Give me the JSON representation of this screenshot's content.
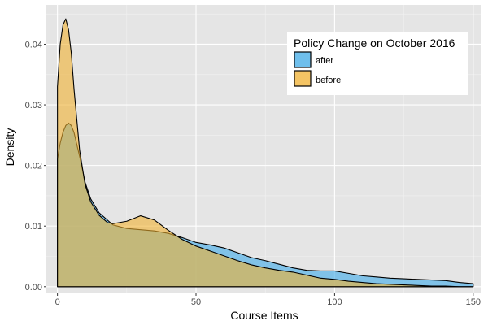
{
  "chart_data": {
    "type": "area",
    "subtype": "density",
    "xlabel": "Course Items",
    "ylabel": "Density",
    "xlim": [
      -4,
      153
    ],
    "ylim": [
      -0.0011,
      0.0465
    ],
    "x_ticks": [
      0,
      50,
      100,
      150
    ],
    "x_tick_labels": [
      "0",
      "50",
      "100",
      "150"
    ],
    "y_ticks": [
      0.0,
      0.01,
      0.02,
      0.03,
      0.04
    ],
    "y_tick_labels": [
      "0.00",
      "0.01",
      "0.02",
      "0.03",
      "0.04"
    ],
    "grid": true,
    "legend": {
      "title": "Policy Change on October 2016",
      "placement": "top-right",
      "entries": [
        "after",
        "before"
      ]
    },
    "series": [
      {
        "name": "after",
        "color": "#56B4E9",
        "alpha": 0.7,
        "points": [
          [
            0,
            0.021
          ],
          [
            1,
            0.0237
          ],
          [
            2,
            0.0255
          ],
          [
            3,
            0.0266
          ],
          [
            4,
            0.027
          ],
          [
            5,
            0.0266
          ],
          [
            6,
            0.0254
          ],
          [
            8,
            0.0215
          ],
          [
            10,
            0.0172
          ],
          [
            12,
            0.0145
          ],
          [
            15,
            0.0122
          ],
          [
            18,
            0.011
          ],
          [
            20,
            0.0102
          ],
          [
            25,
            0.0096
          ],
          [
            30,
            0.0094
          ],
          [
            35,
            0.0092
          ],
          [
            40,
            0.0088
          ],
          [
            45,
            0.0081
          ],
          [
            50,
            0.0073
          ],
          [
            55,
            0.0069
          ],
          [
            60,
            0.0064
          ],
          [
            65,
            0.0056
          ],
          [
            70,
            0.0048
          ],
          [
            75,
            0.0043
          ],
          [
            80,
            0.0037
          ],
          [
            85,
            0.0031
          ],
          [
            90,
            0.0027
          ],
          [
            95,
            0.0026
          ],
          [
            100,
            0.0026
          ],
          [
            105,
            0.0022
          ],
          [
            110,
            0.0018
          ],
          [
            115,
            0.0016
          ],
          [
            120,
            0.0014
          ],
          [
            125,
            0.0013
          ],
          [
            130,
            0.0012
          ],
          [
            135,
            0.0011
          ],
          [
            140,
            0.001
          ],
          [
            145,
            0.0007
          ],
          [
            150,
            0.0005
          ]
        ]
      },
      {
        "name": "before",
        "color": "#F0B030",
        "alpha": 0.6,
        "points": [
          [
            0,
            0.033
          ],
          [
            1,
            0.04
          ],
          [
            2,
            0.0432
          ],
          [
            3,
            0.0442
          ],
          [
            4,
            0.0424
          ],
          [
            5,
            0.0385
          ],
          [
            6,
            0.0325
          ],
          [
            8,
            0.0225
          ],
          [
            10,
            0.0168
          ],
          [
            12,
            0.014
          ],
          [
            15,
            0.0118
          ],
          [
            18,
            0.0106
          ],
          [
            20,
            0.0104
          ],
          [
            25,
            0.0108
          ],
          [
            30,
            0.0117
          ],
          [
            35,
            0.011
          ],
          [
            40,
            0.0093
          ],
          [
            45,
            0.0078
          ],
          [
            50,
            0.0067
          ],
          [
            55,
            0.0059
          ],
          [
            60,
            0.0051
          ],
          [
            65,
            0.0043
          ],
          [
            70,
            0.0036
          ],
          [
            75,
            0.0031
          ],
          [
            80,
            0.0027
          ],
          [
            85,
            0.0024
          ],
          [
            90,
            0.0019
          ],
          [
            95,
            0.0014
          ],
          [
            100,
            0.0012
          ],
          [
            105,
            0.0009
          ],
          [
            110,
            0.0007
          ],
          [
            115,
            0.0005
          ],
          [
            120,
            0.0004
          ],
          [
            125,
            0.0003
          ],
          [
            130,
            0.0002
          ],
          [
            135,
            0.0001
          ],
          [
            140,
            0.0001
          ],
          [
            145,
            0.0
          ],
          [
            150,
            0.0
          ]
        ]
      }
    ]
  },
  "colors": {
    "panel_background": "#E5E5E5",
    "grid_major": "#FFFFFF",
    "grid_minor": "#F2F2F2",
    "outline": "#000000",
    "legend_background": "#FFFFFF"
  }
}
